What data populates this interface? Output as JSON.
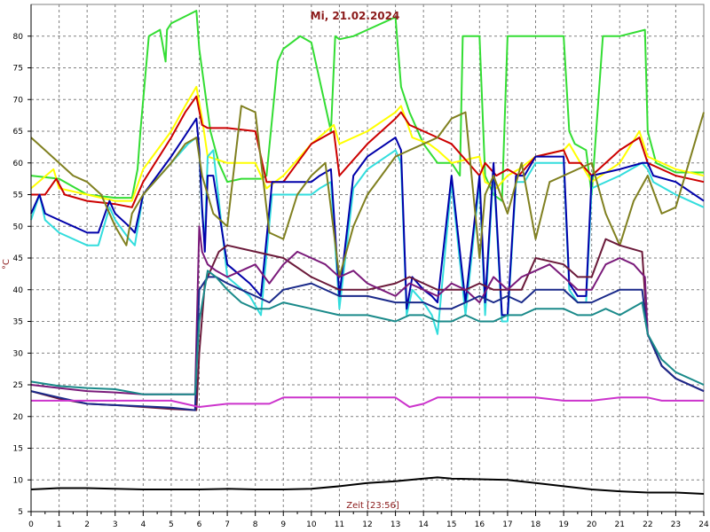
{
  "chart_data": {
    "type": "line",
    "title": "Mi, 21.02.2024",
    "xlabel": "Zeit [23:56]",
    "ylabel": "°C",
    "xlim": [
      0,
      24
    ],
    "ylim": [
      5,
      85
    ],
    "xticks": [
      "0",
      "1",
      "2",
      "3",
      "4",
      "5",
      "6",
      "7",
      "8",
      "9",
      "10",
      "11",
      "12",
      "13",
      "14",
      "15",
      "16",
      "17",
      "18",
      "19",
      "20",
      "21",
      "22",
      "23",
      "24"
    ],
    "yticks": [
      "5",
      "10",
      "15",
      "20",
      "25",
      "30",
      "35",
      "40",
      "45",
      "50",
      "55",
      "60",
      "65",
      "70",
      "75",
      "80"
    ],
    "grid": true,
    "series": [
      {
        "color": "#33dd33",
        "x": [
          0,
          1,
          2,
          3,
          3.6,
          3.8,
          3.9,
          4.2,
          4.6,
          4.8,
          4.85,
          5,
          5.9,
          6,
          6.4,
          6.7,
          7,
          7.5,
          8.2,
          8.4,
          8.8,
          9,
          9.6,
          10,
          10.7,
          10.85,
          11,
          11.5,
          12,
          13,
          13.2,
          13.5,
          14,
          14.5,
          15,
          15.3,
          15.4,
          16,
          16.2,
          16.5,
          16.8,
          17,
          17.2,
          17.5,
          18,
          19,
          19.2,
          19.4,
          19.8,
          20,
          20.4,
          21,
          21.9,
          22,
          22.3,
          23,
          24
        ],
        "y": [
          58,
          57.5,
          55,
          54.5,
          54.5,
          59,
          65,
          80,
          81,
          76,
          81,
          82,
          84,
          78,
          65,
          60,
          57,
          57.5,
          57.5,
          58,
          76,
          78,
          80,
          79,
          65,
          80,
          79.5,
          80,
          81,
          83,
          72,
          68,
          63,
          60,
          60,
          58,
          80,
          80,
          58,
          55,
          54,
          80,
          80,
          80,
          80,
          80,
          65,
          63,
          62,
          55,
          80,
          80,
          81,
          65,
          60,
          58.5,
          58.5
        ]
      },
      {
        "color": "#ffff00",
        "x": [
          0,
          0.8,
          1,
          2,
          3,
          3.6,
          4,
          5,
          5.5,
          5.9,
          6.1,
          6.3,
          7,
          8,
          8.4,
          9,
          10,
          10.8,
          11,
          12,
          13,
          13.2,
          13.6,
          14.2,
          14.5,
          15,
          16,
          16.2,
          16.6,
          17,
          17.4,
          18,
          19,
          19.2,
          19.6,
          20,
          21,
          21.7,
          22,
          23,
          24
        ],
        "y": [
          56,
          59,
          56,
          55,
          54,
          54,
          59,
          65,
          69,
          72,
          67,
          61,
          60,
          60,
          56,
          58,
          63,
          66,
          63,
          65,
          68,
          69,
          64,
          63,
          62,
          60,
          61,
          57,
          56,
          58,
          59,
          61,
          62,
          63,
          60,
          57,
          60,
          65,
          61,
          59,
          58
        ]
      },
      {
        "color": "#cc0000",
        "x": [
          0,
          0.5,
          0.9,
          1.2,
          2,
          3,
          3.6,
          4,
          5,
          5.5,
          5.9,
          6.1,
          6.3,
          7,
          8,
          8.4,
          9,
          10,
          10.8,
          11,
          12,
          13,
          13.2,
          13.5,
          14,
          14.5,
          15,
          16,
          16.2,
          16.6,
          17,
          17.4,
          18,
          19,
          19.2,
          19.6,
          20,
          21,
          21.7,
          22,
          23,
          24
        ],
        "y": [
          55,
          55,
          57.5,
          55,
          54,
          53.5,
          53,
          57,
          64,
          68,
          70.5,
          66,
          65.5,
          65.5,
          65,
          57,
          57,
          63,
          65,
          58,
          63,
          67,
          68,
          66,
          65,
          64,
          63,
          58,
          60,
          58,
          59,
          58,
          61,
          62,
          60,
          60,
          58,
          62,
          64,
          60,
          58,
          57
        ]
      },
      {
        "color": "#33dddd",
        "x": [
          0,
          0.3,
          0.5,
          1,
          2,
          2.4,
          2.8,
          3,
          3.5,
          3.7,
          4,
          5,
          5.6,
          5.9,
          6,
          6.1,
          6.2,
          6.3,
          6.5,
          7,
          7.8,
          8.2,
          8.6,
          9,
          10,
          10.3,
          10.7,
          11,
          11.5,
          12,
          13,
          13.2,
          13.4,
          13.6,
          14,
          14.3,
          14.5,
          15,
          15.5,
          16,
          16.2,
          16.5,
          16.8,
          17,
          17.3,
          17.6,
          18,
          19,
          19.2,
          19.5,
          19.8,
          20,
          21,
          21.8,
          22,
          22.2,
          23,
          24
        ],
        "y": [
          51,
          55,
          51,
          49,
          47,
          47,
          53,
          51,
          48,
          47,
          55,
          60,
          63,
          64,
          62,
          52,
          48,
          61,
          62,
          42,
          39,
          36,
          55,
          55,
          55,
          56,
          57,
          37,
          56,
          59,
          62,
          60,
          36,
          40,
          38,
          36,
          33,
          57,
          36,
          57,
          36,
          59,
          35,
          35,
          57,
          57,
          60,
          60,
          40,
          38,
          38,
          56,
          58,
          60,
          59,
          57,
          55,
          53
        ]
      },
      {
        "color": "#0000aa",
        "x": [
          0,
          0.3,
          0.5,
          1,
          2,
          2.4,
          2.8,
          3,
          3.5,
          3.7,
          4,
          5,
          5.6,
          5.9,
          6,
          6.1,
          6.2,
          6.3,
          6.5,
          7,
          7.8,
          8.2,
          8.6,
          9,
          10,
          10.3,
          10.7,
          11,
          11.5,
          12,
          13,
          13.2,
          13.4,
          13.6,
          14,
          14.3,
          14.5,
          15,
          15.5,
          16,
          16.2,
          16.5,
          16.8,
          17,
          17.3,
          17.6,
          18,
          19,
          19.2,
          19.5,
          19.8,
          20,
          21,
          21.8,
          22,
          22.2,
          23,
          24
        ],
        "y": [
          52,
          55,
          52,
          51,
          49,
          49,
          54,
          52,
          50,
          49,
          55,
          61,
          65,
          67,
          62,
          53,
          46,
          58,
          58,
          44,
          41,
          39,
          57,
          57,
          57,
          58,
          59,
          39,
          58,
          61,
          64,
          62,
          37,
          42,
          40,
          39,
          38,
          58,
          38,
          58,
          38,
          60,
          36,
          36,
          58,
          58,
          61,
          61,
          41,
          39,
          39,
          58,
          59,
          60,
          60,
          58,
          57,
          54
        ]
      },
      {
        "color": "#808020",
        "x": [
          0,
          0.5,
          1,
          1.5,
          2,
          2.5,
          3,
          3.4,
          3.6,
          4,
          5,
          5.5,
          5.9,
          6.1,
          6.5,
          7,
          7.5,
          8,
          8.5,
          9,
          9.5,
          10,
          10.5,
          11,
          11.5,
          12,
          12.5,
          13,
          13.5,
          14,
          14.5,
          15,
          15.5,
          16,
          16.2,
          16.5,
          17,
          17.5,
          18,
          18.5,
          19,
          19.5,
          20,
          20.5,
          21,
          21.5,
          22,
          22.5,
          23,
          24
        ],
        "y": [
          64,
          62,
          60,
          58,
          57,
          55,
          50,
          47,
          52,
          55,
          60,
          63,
          64,
          58,
          52,
          50,
          69,
          68,
          49,
          48,
          55,
          58,
          60,
          42,
          50,
          55,
          58,
          61,
          62,
          63,
          64,
          67,
          68,
          45,
          55,
          58,
          52,
          60,
          48,
          57,
          58,
          59,
          60,
          52,
          47,
          54,
          58,
          52,
          53,
          68
        ]
      },
      {
        "color": "#6b1a3a",
        "x": [
          0,
          1,
          2,
          3,
          4,
          5,
          5.9,
          6,
          6.2,
          6.4,
          6.7,
          7,
          8,
          9,
          10,
          10.5,
          11,
          12,
          13,
          13.5,
          14,
          14.5,
          15,
          15.5,
          16,
          16.5,
          17,
          17.5,
          18,
          19,
          19.5,
          20,
          20.5,
          21,
          21.8,
          22,
          22.5,
          23,
          24
        ],
        "y": [
          24,
          22.8,
          22,
          21.8,
          21.5,
          21.2,
          21,
          30,
          41,
          43,
          46,
          47,
          46,
          45,
          42,
          41,
          40,
          40,
          41,
          42,
          41,
          40,
          40,
          40,
          41,
          40,
          40,
          40,
          45,
          44,
          42,
          42,
          48,
          47,
          46,
          33,
          28,
          26,
          24
        ]
      },
      {
        "color": "#7a1a7a",
        "x": [
          0,
          1,
          2,
          3,
          4,
          5,
          5.85,
          6,
          6.1,
          6.3,
          6.6,
          7,
          7.5,
          8,
          8.5,
          9,
          9.5,
          10,
          10.5,
          11,
          11.5,
          12,
          12.5,
          13,
          13.5,
          14,
          14.5,
          15,
          15.5,
          16,
          16.5,
          17,
          17.5,
          18,
          18.5,
          19,
          19.5,
          20,
          20.5,
          21,
          21.5,
          21.9,
          22,
          22.5,
          23,
          24
        ],
        "y": [
          25,
          24.5,
          24,
          23.8,
          23.5,
          23.5,
          23.5,
          50,
          46,
          44,
          43,
          42,
          43,
          44,
          41,
          44,
          46,
          45,
          44,
          42,
          43,
          41,
          40,
          39,
          41,
          40,
          39,
          41,
          40,
          38,
          42,
          40,
          42,
          43,
          44,
          42,
          40,
          40,
          44,
          45,
          44,
          42,
          33,
          28,
          26,
          24
        ]
      },
      {
        "color": "#1a2a8a",
        "x": [
          0,
          1,
          2,
          3,
          4,
          5,
          5.85,
          6,
          6.3,
          6.6,
          7,
          7.5,
          8,
          8.5,
          9,
          10,
          11,
          12,
          13,
          13.5,
          14,
          14.5,
          15,
          15.5,
          16,
          16.5,
          17,
          17.5,
          18,
          19,
          19.5,
          20,
          20.5,
          21,
          21.8,
          22,
          22.5,
          23,
          24
        ],
        "y": [
          24,
          23,
          22,
          21.8,
          21.6,
          21.4,
          21,
          40,
          42,
          42,
          41,
          40,
          39,
          38,
          40,
          41,
          39,
          39,
          38,
          38,
          38,
          37,
          37,
          38,
          39,
          38,
          39,
          38,
          40,
          40,
          38,
          38,
          39,
          40,
          40,
          33,
          28,
          26,
          24
        ]
      },
      {
        "color": "#1a8a8a",
        "x": [
          0,
          1,
          2,
          3,
          4,
          5,
          5.85,
          6,
          6.3,
          6.6,
          7,
          7.5,
          8,
          8.5,
          9,
          10,
          11,
          12,
          13,
          13.5,
          14,
          14.5,
          15,
          15.5,
          16,
          16.5,
          17,
          17.5,
          18,
          19,
          19.5,
          20,
          20.5,
          21,
          21.8,
          22,
          22.5,
          23,
          24
        ],
        "y": [
          25.5,
          24.8,
          24.5,
          24.3,
          23.5,
          23.5,
          23.5,
          35,
          43,
          42,
          40,
          38,
          37,
          37,
          38,
          37,
          36,
          36,
          35,
          36,
          36,
          35,
          35,
          36,
          35,
          35,
          36,
          36,
          37,
          37,
          36,
          36,
          37,
          36,
          38,
          33,
          29,
          27,
          25
        ]
      },
      {
        "color": "#cc33cc",
        "x": [
          0,
          1,
          2,
          3,
          4,
          5,
          6,
          7,
          8,
          8.5,
          9,
          10,
          11,
          12,
          13,
          13.5,
          14,
          14.5,
          15,
          16,
          17,
          18,
          19,
          20,
          21,
          22,
          22.5,
          23,
          24
        ],
        "y": [
          22.5,
          22.5,
          22.5,
          22.5,
          22.5,
          22.5,
          21.5,
          22,
          22,
          22,
          23,
          23,
          23,
          23,
          23,
          21.5,
          22,
          23,
          23,
          23,
          23,
          23,
          22.5,
          22.5,
          23,
          23,
          22.5,
          22.5,
          22.5
        ]
      },
      {
        "color": "#000000",
        "x": [
          0,
          1,
          2,
          3,
          4,
          5,
          6,
          7,
          8,
          9,
          10,
          11,
          12,
          13,
          14,
          14.5,
          15,
          16,
          17,
          18,
          19,
          20,
          21,
          22,
          23,
          24
        ],
        "y": [
          8.5,
          8.7,
          8.7,
          8.6,
          8.5,
          8.5,
          8.5,
          8.6,
          8.5,
          8.5,
          8.6,
          9,
          9.5,
          9.8,
          10.2,
          10.4,
          10.2,
          10.1,
          10,
          9.5,
          9,
          8.5,
          8.2,
          8,
          8,
          7.8
        ]
      }
    ]
  }
}
